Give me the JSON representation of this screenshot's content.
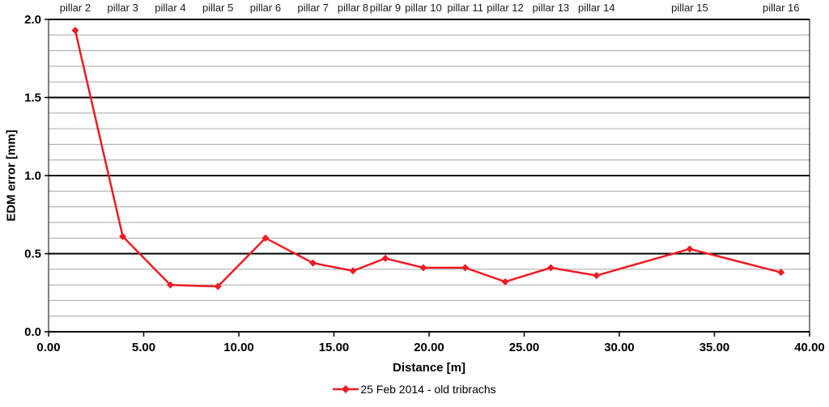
{
  "chart_data": {
    "type": "line",
    "title": "",
    "xlabel": "Distance [m]",
    "ylabel": "EDM error [mm]",
    "xlim": [
      0,
      40
    ],
    "ylim": [
      0,
      2
    ],
    "x_major_ticks": [
      0,
      5,
      10,
      15,
      20,
      25,
      30,
      35,
      40
    ],
    "x_tick_labels": [
      "0.00",
      "5.00",
      "10.00",
      "15.00",
      "20.00",
      "25.00",
      "30.00",
      "35.00",
      "40.00"
    ],
    "y_major_ticks": [
      0,
      0.5,
      1,
      1.5,
      2
    ],
    "y_tick_labels": [
      "0.0",
      "0.5",
      "1.0",
      "1.5",
      "2.0"
    ],
    "y_minor_step": 0.1,
    "grid": "horizontal-major-and-minor",
    "legend_position": "bottom-center",
    "colors": {
      "line": "#ed1c24",
      "grid_minor": "#a6a6a6",
      "grid_major": "#000000",
      "axis": "#000000",
      "background": "#ffffff"
    },
    "series": [
      {
        "name": "25 Feb 2014 - old tribrachs",
        "color": "#ed1c24",
        "marker": "diamond",
        "points": [
          {
            "label": "pillar 2",
            "x": 1.4,
            "y": 1.93
          },
          {
            "label": "pillar 3",
            "x": 3.9,
            "y": 0.61
          },
          {
            "label": "pillar 4",
            "x": 6.4,
            "y": 0.3
          },
          {
            "label": "pillar 5",
            "x": 8.9,
            "y": 0.29
          },
          {
            "label": "pillar 6",
            "x": 11.4,
            "y": 0.6
          },
          {
            "label": "pillar 7",
            "x": 13.9,
            "y": 0.44
          },
          {
            "label": "pillar 8",
            "x": 16.0,
            "y": 0.39
          },
          {
            "label": "pillar 9",
            "x": 17.7,
            "y": 0.47
          },
          {
            "label": "pillar 10",
            "x": 19.7,
            "y": 0.41
          },
          {
            "label": "pillar 11",
            "x": 21.9,
            "y": 0.41
          },
          {
            "label": "pillar 12",
            "x": 24.0,
            "y": 0.32
          },
          {
            "label": "pillar 13",
            "x": 26.4,
            "y": 0.41
          },
          {
            "label": "pillar 14",
            "x": 28.8,
            "y": 0.36
          },
          {
            "label": "pillar 15",
            "x": 33.7,
            "y": 0.53
          },
          {
            "label": "pillar 16",
            "x": 38.5,
            "y": 0.38
          }
        ]
      }
    ]
  }
}
